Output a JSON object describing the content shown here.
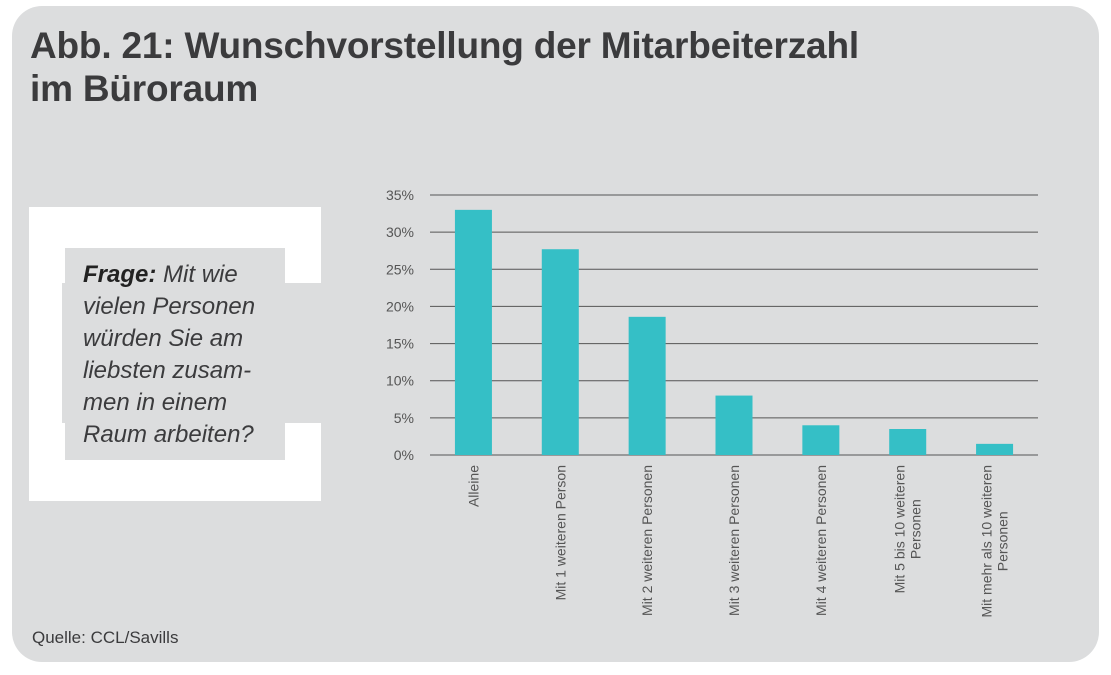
{
  "title_lines": [
    "Abb. 21: Wunschvorstellung der Mitarbeiterzahl",
    "im Büroraum"
  ],
  "question": {
    "label": "Frage:",
    "first_line_rest": " Mit wie",
    "lines": [
      "vielen Personen",
      "würden Sie am",
      "liebsten zusam-",
      "men in einem",
      "Raum arbeiten?"
    ]
  },
  "source": "Quelle: CCL/Savills",
  "colors": {
    "bar": "#35bfc6",
    "background": "#dcddde",
    "grid": "#555555"
  },
  "chart_data": {
    "type": "bar",
    "categories": [
      [
        "Alleine"
      ],
      [
        "Mit 1 weiteren Person"
      ],
      [
        "Mit 2 weiteren Personen"
      ],
      [
        "Mit 3 weiteren Personen"
      ],
      [
        "Mit 4 weiteren Personen"
      ],
      [
        "Mit 5 bis 10 weiteren",
        "Personen"
      ],
      [
        "Mit mehr als 10 weiteren",
        "Personen"
      ]
    ],
    "values": [
      33,
      27.7,
      18.6,
      8,
      4,
      3.5,
      1.5
    ],
    "ylim": [
      0,
      35
    ],
    "yticks": [
      "0%",
      "5%",
      "10%",
      "15%",
      "20%",
      "25%",
      "30%",
      "35%"
    ],
    "grid": true,
    "xlabel": "",
    "ylabel": ""
  }
}
